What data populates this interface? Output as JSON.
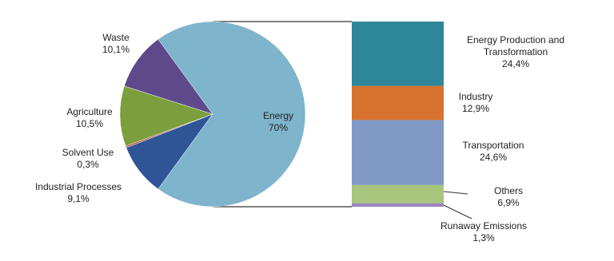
{
  "chart_data": {
    "type": "bar-of-pie",
    "categories": [
      "Industrial Processes",
      "Solvent Use",
      "Agriculture",
      "Waste",
      "Energy"
    ],
    "values": [
      9.1,
      0.3,
      10.5,
      10.1,
      70
    ],
    "value_labels": [
      "9,1%",
      "0,3%",
      "10,5%",
      "10,1%",
      "70%"
    ],
    "colors": [
      "#2f5597",
      "#c0504d",
      "#7a9f3c",
      "#5e4a8a",
      "#7eb4cc"
    ],
    "breakdown": {
      "categories": [
        "Energy Production and Transformation",
        "Industry",
        "Transportation",
        "Others",
        "Runaway Emissions"
      ],
      "values": [
        24.4,
        12.9,
        24.6,
        6.9,
        1.3
      ],
      "value_labels": [
        "24,4%",
        "12,9%",
        "24,6%",
        "6,9%",
        "1,3%"
      ],
      "colors": [
        "#2e869a",
        "#d7722f",
        "#8099c6",
        "#a8c57e",
        "#9a86bb"
      ]
    }
  }
}
